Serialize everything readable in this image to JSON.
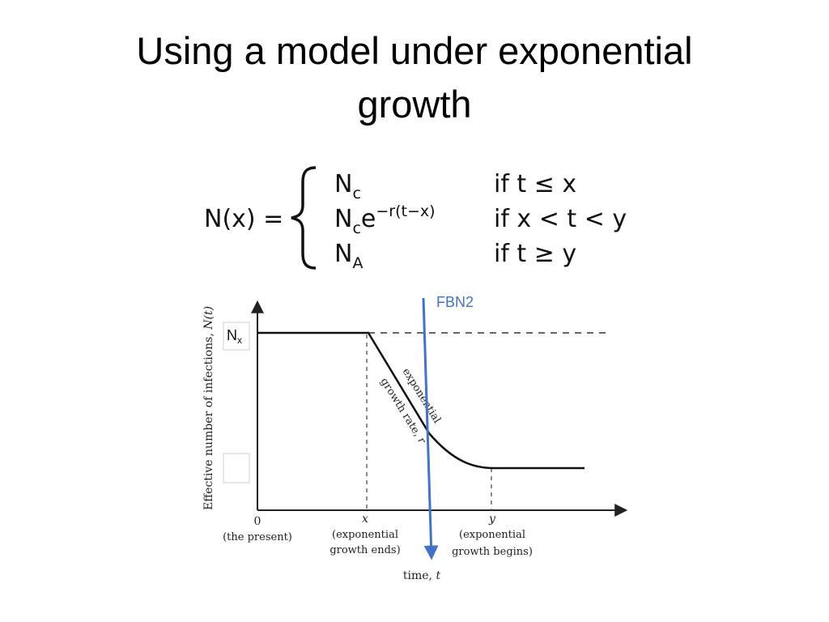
{
  "slide": {
    "title_line1": "Using a model under exponential",
    "title_line2": "growth"
  },
  "formula": {
    "lhs": "N(x) =",
    "cases": [
      {
        "base": "N",
        "sub": "c",
        "sup": "",
        "cond": "if t ≤ x"
      },
      {
        "base": "N",
        "sub": "c",
        "sup": "−r(t−x)",
        "exp_base": "e",
        "cond": "if x < t < y"
      },
      {
        "base": "N",
        "sub": "A",
        "sup": "",
        "cond": "if t ≥ y"
      }
    ]
  },
  "diagram": {
    "y_axis_label_text": "Effective number of infections, ",
    "y_axis_label_italic": "N(t)",
    "x_axis_label_text": "time, ",
    "x_axis_label_italic": "t",
    "nx_label": "N",
    "nx_sub": "x",
    "tick_zero": "0",
    "tick_zero_caption": "(the present)",
    "tick_x": "x",
    "tick_x_caption_1": "(exponential",
    "tick_x_caption_2": "growth ends)",
    "tick_y": "y",
    "tick_y_caption_1": "(exponential",
    "tick_y_caption_2": "growth begins)",
    "slope_label_1": "exponential",
    "slope_label_2": "growth rate, ",
    "slope_label_italic": "r",
    "marker_label": "FBN2",
    "marker_color": "#4472c4"
  }
}
